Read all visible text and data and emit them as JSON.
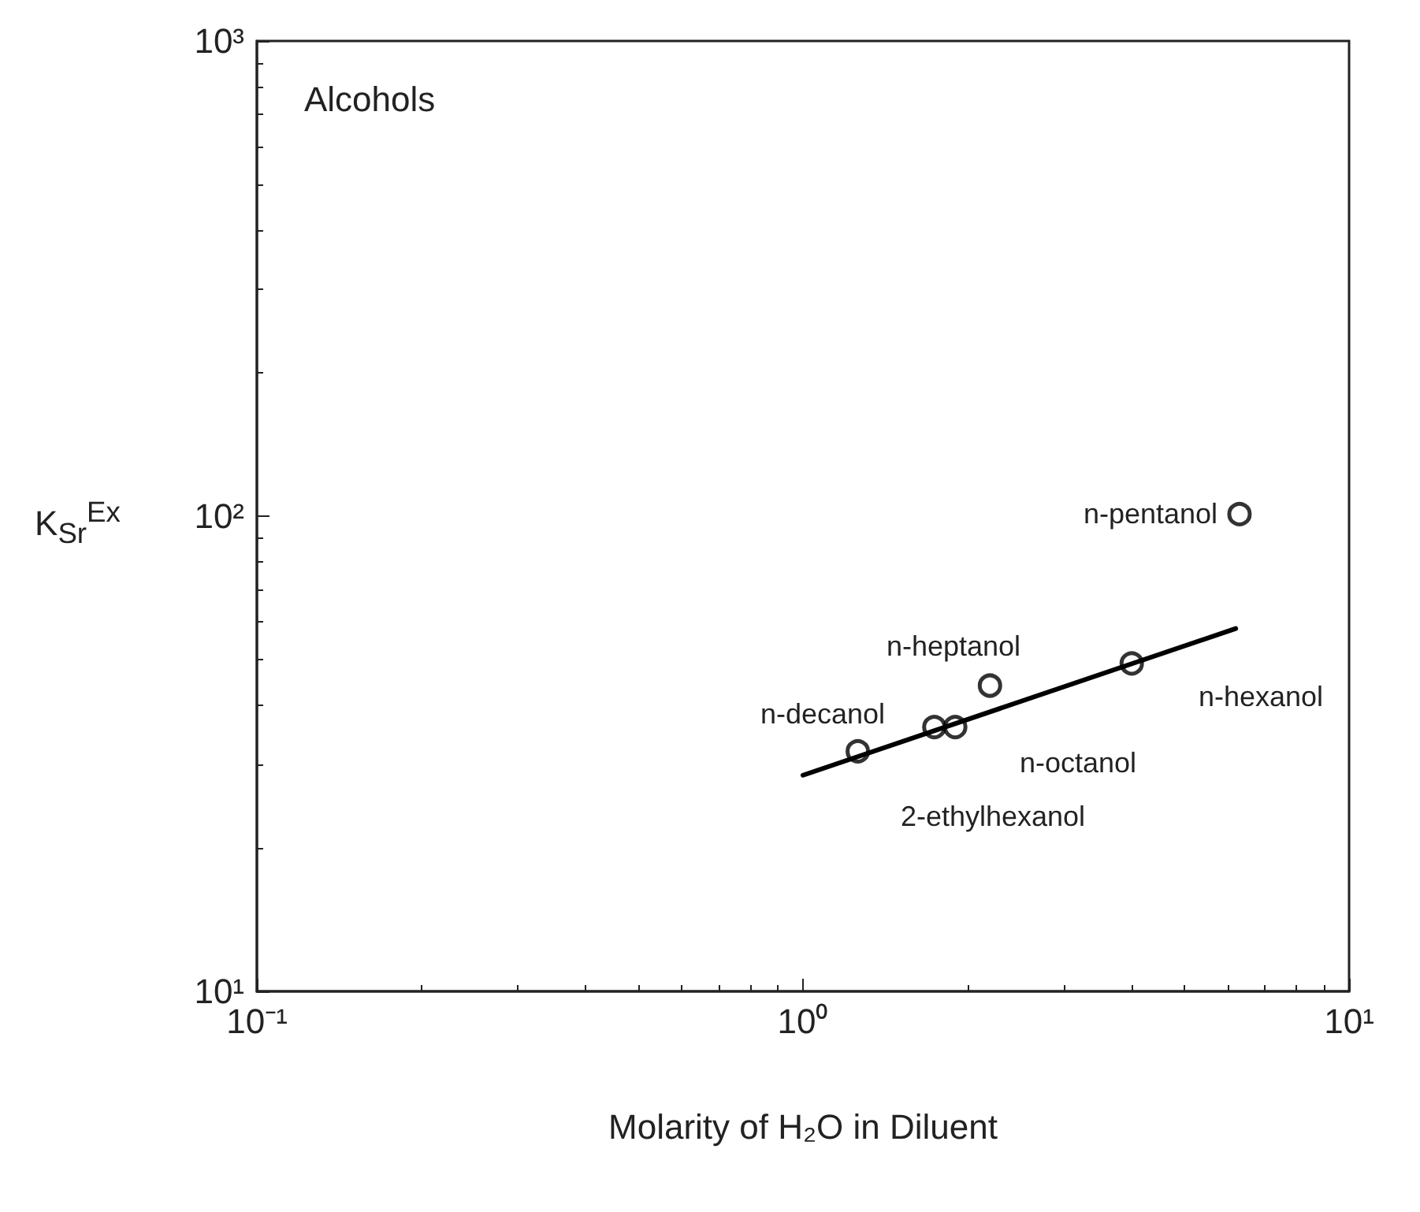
{
  "chart_data": {
    "type": "scatter",
    "xlabel": "Molarity of H₂O in Diluent",
    "ylabel": "K$_{Sr}$$^{Ex}$",
    "log": "xy",
    "grid": false,
    "marker": "circle",
    "xlim": [
      0.1,
      10
    ],
    "ylim": [
      10,
      1000
    ],
    "xticks": [
      {
        "value": 0.1,
        "label": "10⁻¹"
      },
      {
        "value": 1,
        "label": "10⁰"
      },
      {
        "value": 10,
        "label": "10¹"
      }
    ],
    "yticks": [
      {
        "value": 10,
        "label": "10¹"
      },
      {
        "value": 100,
        "label": "10²"
      },
      {
        "value": 1000,
        "label": "10³"
      }
    ],
    "series": [
      {
        "type": "scatter",
        "color": "#000000",
        "x": [
          1.26,
          1.74,
          1.9,
          2.2,
          4.0,
          6.3
        ],
        "values": [
          32,
          36,
          36,
          44,
          49,
          101
        ]
      },
      {
        "type": "line",
        "color": "#000000",
        "marker": "none",
        "x": [
          1.0,
          6.2
        ],
        "values": [
          28.5,
          58
        ]
      }
    ],
    "annotations": [
      "Alcohols",
      "n-pentanol",
      "n-hexanol",
      "n-heptanol",
      "n-decanol",
      "n-octanol",
      "2-ethylhexanol"
    ]
  }
}
